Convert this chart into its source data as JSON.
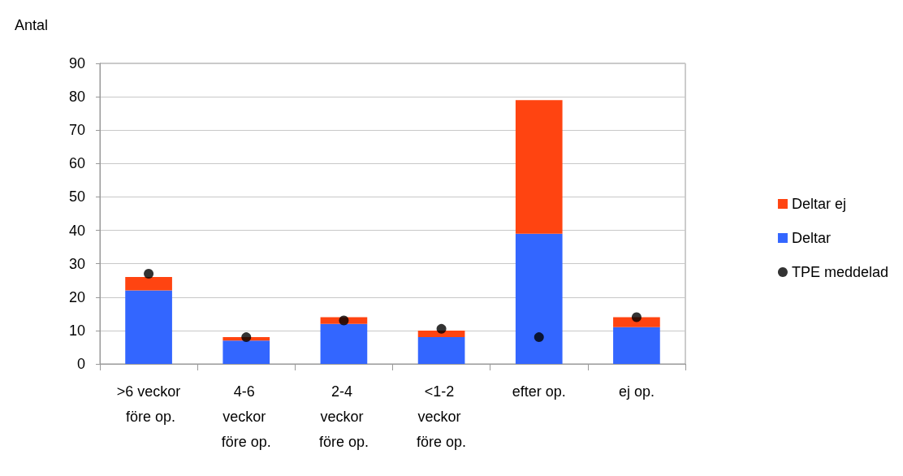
{
  "chart_data": {
    "type": "bar",
    "ylabel": "Antal",
    "categories": [
      ">6 veckor före op.",
      "4-6 veckor före op.",
      "2-4 veckor före op.",
      "<1-2 veckor före op.",
      "efter op.",
      "ej op."
    ],
    "stacked": true,
    "ylim": [
      0,
      90
    ],
    "yticks": [
      0,
      10,
      20,
      30,
      40,
      50,
      60,
      70,
      80,
      90
    ],
    "grid": "y",
    "legend": "right",
    "series": [
      {
        "name": "Deltar",
        "color": "#3366ff",
        "values": [
          22,
          7,
          12,
          8,
          39,
          11
        ]
      },
      {
        "name": "Deltar ej",
        "color": "#ff4411",
        "values": [
          4,
          1,
          2,
          2,
          40,
          3
        ]
      },
      {
        "name": "TPE meddelad",
        "type": "scatter",
        "color": "#000000",
        "marker": "circle",
        "values": [
          27,
          8,
          13,
          10.5,
          8,
          14
        ]
      }
    ]
  }
}
